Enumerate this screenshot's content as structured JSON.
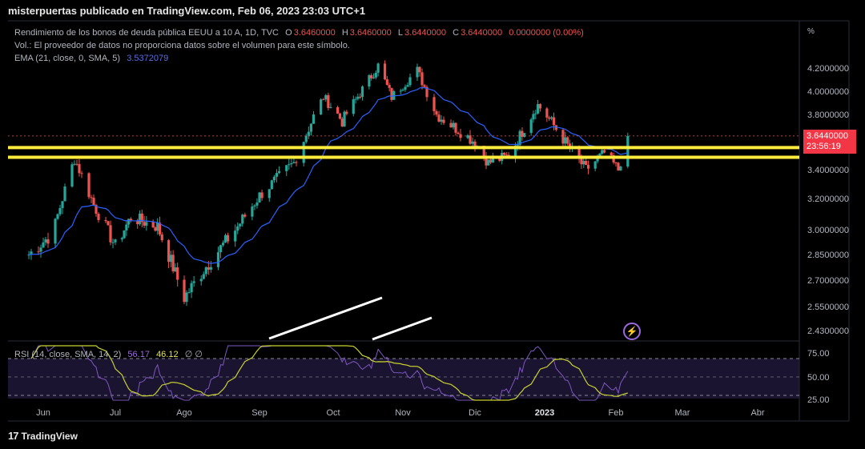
{
  "header": {
    "published": "misterpuertas publicado en TradingView.com, Feb 06, 2023 23:03 UTC+1"
  },
  "legend": {
    "symbol": "Rendimiento de los bonos de deuda pública EEUU a 10 A, 1D, TVC",
    "o_label": "O",
    "o": "3.6460000",
    "h_label": "H",
    "h": "3.6460000",
    "l_label": "L",
    "l": "3.6440000",
    "c_label": "C",
    "c": "3.6440000",
    "change": "0.0000000 (0.00%)",
    "volume_note": "Vol.: El proveedor de datos no proporciona datos sobre el volumen para este símbolo.",
    "ema_label": "EMA (21, close, 0, SMA, 5)",
    "ema_value": "3.5372079",
    "rsi_label": "RSI (14, close, SMA, 14, 2)",
    "rsi_value": "56.17",
    "rsi_sma_value": "46.12",
    "rsi_extra": "∅ ∅"
  },
  "price_box": {
    "price": "3.6440000",
    "countdown": "23:56:19"
  },
  "brand": {
    "name": "TradingView",
    "logo_text": "17"
  },
  "colors": {
    "background": "#131722",
    "up": "#26a69a",
    "down": "#ef5350",
    "ema": "#2962ff",
    "rsi": "#7e57c2",
    "rsi_sma": "#c9d22f",
    "support": "#ffeb3b",
    "trendline": "#ffffff"
  },
  "icons": {
    "alert": "lightning-bolt-icon",
    "alert_symbol": "⚡"
  },
  "chart_data": {
    "type": "candlestick",
    "title": "Rendimiento de los bonos de deuda pública EEUU a 10 A, 1D, TVC",
    "y_unit": "%",
    "price_ticks": [
      "4.2000000",
      "4.0000000",
      "3.8000000",
      "3.4000000",
      "3.2000000",
      "3.0000000",
      "2.8500000",
      "2.7000000",
      "2.5500000",
      "2.4300000"
    ],
    "rsi_ticks": [
      "75.00",
      "50.00",
      "25.00"
    ],
    "x_ticks": [
      "Jun",
      "Jul",
      "Ago",
      "Sep",
      "Oct",
      "Nov",
      "Dic",
      "2023",
      "Feb",
      "Mar",
      "Abr"
    ],
    "last_price": 3.644,
    "support_zone": [
      3.49,
      3.56
    ],
    "price_path_anchors": [
      {
        "d": "2022-05-26",
        "v": 2.85
      },
      {
        "d": "2022-06-05",
        "v": 2.98
      },
      {
        "d": "2022-06-14",
        "v": 3.48
      },
      {
        "d": "2022-06-22",
        "v": 3.16
      },
      {
        "d": "2022-07-01",
        "v": 2.9
      },
      {
        "d": "2022-07-08",
        "v": 3.08
      },
      {
        "d": "2022-07-20",
        "v": 3.02
      },
      {
        "d": "2022-08-01",
        "v": 2.6
      },
      {
        "d": "2022-08-10",
        "v": 2.78
      },
      {
        "d": "2022-08-22",
        "v": 3.0
      },
      {
        "d": "2022-09-01",
        "v": 3.22
      },
      {
        "d": "2022-09-15",
        "v": 3.45
      },
      {
        "d": "2022-09-27",
        "v": 3.95
      },
      {
        "d": "2022-10-05",
        "v": 3.75
      },
      {
        "d": "2022-10-21",
        "v": 4.22
      },
      {
        "d": "2022-10-27",
        "v": 3.95
      },
      {
        "d": "2022-11-07",
        "v": 4.18
      },
      {
        "d": "2022-11-15",
        "v": 3.8
      },
      {
        "d": "2022-12-01",
        "v": 3.6
      },
      {
        "d": "2022-12-07",
        "v": 3.45
      },
      {
        "d": "2022-12-16",
        "v": 3.5
      },
      {
        "d": "2022-12-29",
        "v": 3.88
      },
      {
        "d": "2023-01-05",
        "v": 3.72
      },
      {
        "d": "2023-01-12",
        "v": 3.55
      },
      {
        "d": "2023-01-19",
        "v": 3.4
      },
      {
        "d": "2023-01-27",
        "v": 3.52
      },
      {
        "d": "2023-02-02",
        "v": 3.4
      },
      {
        "d": "2023-02-06",
        "v": 3.644
      }
    ],
    "ema_value": 3.5372079,
    "rsi_value": 56.17,
    "rsi_sma": 46.12
  }
}
